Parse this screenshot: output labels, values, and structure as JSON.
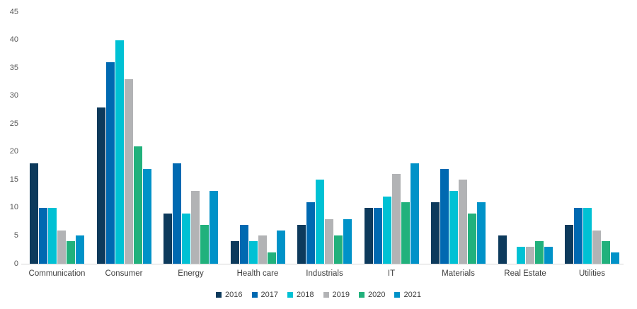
{
  "chart_data": {
    "type": "bar",
    "categories": [
      "Communication",
      "Consumer",
      "Energy",
      "Health care",
      "Industrials",
      "IT",
      "Materials",
      "Real Estate",
      "Utilities"
    ],
    "series": [
      {
        "name": "2016",
        "color": "#0d3a5c",
        "values": [
          18,
          28,
          9,
          4,
          7,
          10,
          11,
          5,
          7
        ]
      },
      {
        "name": "2017",
        "color": "#0069b1",
        "values": [
          10,
          36,
          18,
          7,
          11,
          10,
          17,
          0,
          10
        ]
      },
      {
        "name": "2018",
        "color": "#00c1d4",
        "values": [
          10,
          40,
          9,
          4,
          15,
          12,
          13,
          3,
          10
        ]
      },
      {
        "name": "2019",
        "color": "#b2b3b5",
        "values": [
          6,
          33,
          13,
          5,
          8,
          16,
          15,
          3,
          6
        ]
      },
      {
        "name": "2020",
        "color": "#21b17c",
        "values": [
          4,
          21,
          7,
          2,
          5,
          11,
          9,
          4,
          4
        ]
      },
      {
        "name": "2021",
        "color": "#0092c8",
        "values": [
          5,
          17,
          13,
          6,
          8,
          18,
          11,
          3,
          2
        ]
      }
    ],
    "ylim": [
      0,
      45
    ],
    "yticks": [
      0,
      5,
      10,
      15,
      20,
      25,
      30,
      35,
      40,
      45
    ],
    "grid": false,
    "legend_position": "bottom",
    "axis_color": "#d6d6d6",
    "tick_label_color": "#595959",
    "category_label_color": "#404040"
  }
}
